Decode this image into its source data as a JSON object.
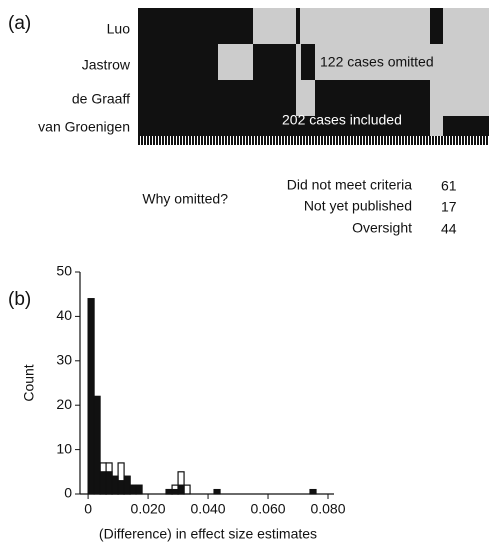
{
  "panel_a": {
    "label": "(a)",
    "rows": [
      "Luo",
      "Jastrow",
      "de Graaff",
      "van Groenigen"
    ],
    "omitted_note": "122 cases omitted",
    "included_note": "202 cases included",
    "why": {
      "title": "Why omitted?",
      "reasons": [
        {
          "text": "Did not meet criteria",
          "count": 61
        },
        {
          "text": "Not yet published",
          "count": 17
        },
        {
          "text": "Oversight",
          "count": 44
        }
      ]
    }
  },
  "chart_data": {
    "type": "histogram",
    "label": "(b)",
    "xlabel": "(Difference) in effect size estimates",
    "ylabel": "Count",
    "bins": [
      0,
      0.002,
      0.004,
      0.006,
      0.008,
      0.01,
      0.012,
      0.014,
      0.016,
      0.018,
      0.02,
      0.022,
      0.024,
      0.026,
      0.028,
      0.03,
      0.032,
      0.034,
      0.036,
      0.038,
      0.04,
      0.042,
      0.044,
      0.046,
      0.048,
      0.05,
      0.052,
      0.054,
      0.056,
      0.058,
      0.06,
      0.062,
      0.064,
      0.066,
      0.068,
      0.07,
      0.072,
      0.074,
      0.076
    ],
    "series": [
      {
        "color": "#ffffff",
        "values": [
          0,
          0,
          7,
          7,
          4,
          7,
          4,
          0,
          0,
          0,
          0,
          0,
          0,
          1,
          2,
          5,
          2,
          0,
          0,
          0,
          0,
          0,
          0,
          0,
          0,
          0,
          0,
          0,
          0,
          0,
          0,
          0,
          0,
          0,
          0,
          0,
          0,
          0
        ]
      },
      {
        "color": "#111111",
        "values": [
          44,
          22,
          5,
          5,
          4,
          3,
          4,
          2,
          2,
          0,
          0,
          0,
          0,
          1,
          1,
          2,
          0,
          0,
          0,
          0,
          0,
          1,
          0,
          0,
          0,
          0,
          0,
          0,
          0,
          0,
          0,
          0,
          0,
          0,
          0,
          0,
          0,
          1
        ]
      }
    ],
    "xlim": [
      -0.0027,
      0.082
    ],
    "ylim": [
      0,
      50
    ],
    "xticks": [
      0,
      {
        "value": 0.02,
        "label": "0.020"
      },
      {
        "value": 0.04,
        "label": "0.040"
      },
      {
        "value": 0.06,
        "label": "0.060"
      },
      {
        "value": 0.08,
        "label": "0.080"
      }
    ],
    "yticks": [
      0,
      10,
      20,
      30,
      40,
      50
    ]
  }
}
